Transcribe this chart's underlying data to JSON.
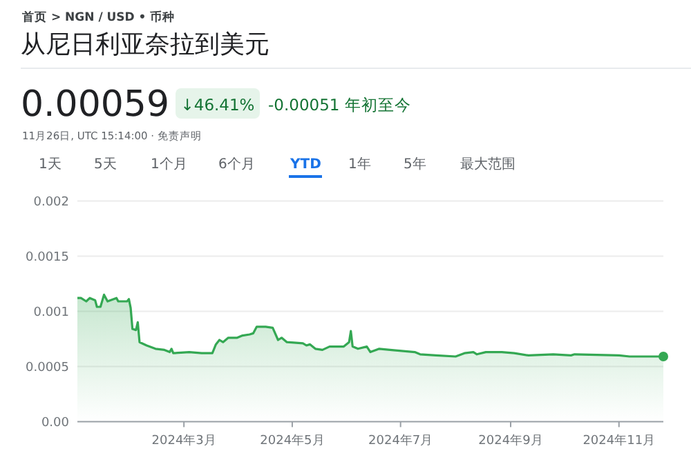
{
  "chart_data": {
    "type": "area",
    "title": "从尼日利亚奈拉到美元",
    "annotations": [
      "首页 > NGN / USD • 币种",
      "0.00059",
      "↓46.41%",
      "-0.00051 年初至今",
      "11月26日, UTC 15:14:00 · 免责声明",
      "1天",
      "5天",
      "1个月",
      "6个月",
      "YTD",
      "1年",
      "5年",
      "最大范围"
    ],
    "x": [
      "2024-01-01",
      "2024-01-03",
      "2024-01-06",
      "2024-01-08",
      "2024-01-11",
      "2024-01-12",
      "2024-01-14",
      "2024-01-16",
      "2024-01-18",
      "2024-01-23",
      "2024-01-24",
      "2024-01-29",
      "2024-01-30",
      "2024-01-31",
      "2024-02-01",
      "2024-02-03",
      "2024-02-04",
      "2024-02-05",
      "2024-02-09",
      "2024-02-14",
      "2024-02-19",
      "2024-02-22",
      "2024-02-23",
      "2024-02-24",
      "2024-03-04",
      "2024-03-11",
      "2024-03-17",
      "2024-03-19",
      "2024-03-21",
      "2024-03-23",
      "2024-03-26",
      "2024-03-31",
      "2024-04-03",
      "2024-04-07",
      "2024-04-09",
      "2024-04-11",
      "2024-04-16",
      "2024-04-20",
      "2024-04-23",
      "2024-04-25",
      "2024-04-28",
      "2024-05-07",
      "2024-05-09",
      "2024-05-11",
      "2024-05-14",
      "2024-05-18",
      "2024-05-22",
      "2024-05-30",
      "2024-06-02",
      "2024-06-03",
      "2024-06-04",
      "2024-06-07",
      "2024-06-12",
      "2024-06-14",
      "2024-06-19",
      "2024-06-25",
      "2024-07-09",
      "2024-07-12",
      "2024-07-21",
      "2024-08-01",
      "2024-08-06",
      "2024-08-11",
      "2024-08-13",
      "2024-08-18",
      "2024-08-27",
      "2024-09-03",
      "2024-09-11",
      "2024-09-25",
      "2024-10-05",
      "2024-10-07",
      "2024-11-01",
      "2024-11-07",
      "2024-11-26"
    ],
    "series": [
      {
        "color": "#34a853",
        "values": [
          0.00112,
          0.00112,
          0.00109,
          0.00112,
          0.0011,
          0.00104,
          0.00104,
          0.00115,
          0.00109,
          0.00112,
          0.00109,
          0.00109,
          0.00111,
          0.00103,
          0.00084,
          0.00083,
          0.0009,
          0.00072,
          0.00069,
          0.00066,
          0.00065,
          0.00063,
          0.00066,
          0.00062,
          0.00063,
          0.00062,
          0.00062,
          0.0007,
          0.00074,
          0.00072,
          0.00076,
          0.00076,
          0.00078,
          0.00079,
          0.0008,
          0.00086,
          0.00086,
          0.00085,
          0.00074,
          0.00076,
          0.00072,
          0.00071,
          0.00069,
          0.0007,
          0.00066,
          0.00065,
          0.00068,
          0.00068,
          0.00072,
          0.00082,
          0.00068,
          0.00066,
          0.00068,
          0.00063,
          0.00066,
          0.00065,
          0.00063,
          0.00061,
          0.0006,
          0.00059,
          0.00062,
          0.00063,
          0.00061,
          0.00063,
          0.00063,
          0.00062,
          0.0006,
          0.00061,
          0.0006,
          0.00061,
          0.0006,
          0.00059,
          0.00059
        ]
      }
    ],
    "xlim": [
      "2024-01-01",
      "2024-11-26"
    ],
    "xticks": [
      {
        "value": "2024-03-01",
        "label": "2024年3月"
      },
      {
        "value": "2024-05-01",
        "label": "2024年5月"
      },
      {
        "value": "2024-07-01",
        "label": "2024年7月"
      },
      {
        "value": "2024-09-01",
        "label": "2024年9月"
      },
      {
        "value": "2024-11-01",
        "label": "2024年11月"
      }
    ],
    "ylim": [
      0,
      0.002
    ],
    "yticks": [
      {
        "value": 0,
        "label": "0.00"
      },
      0.0005,
      0.001,
      0.0015,
      0.002
    ],
    "grid": "y"
  }
}
